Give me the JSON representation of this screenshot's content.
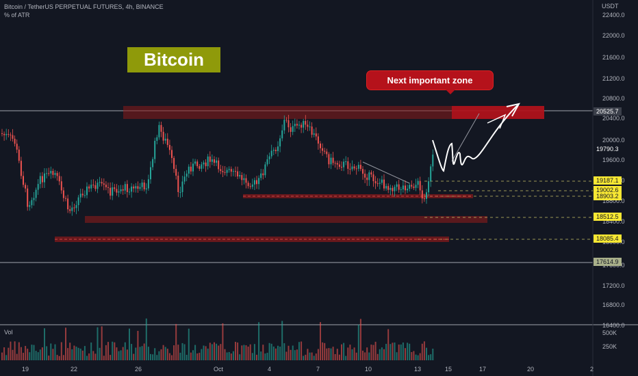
{
  "chart_title": "Bitcoin / TetherUS PERPETUAL FUTURES, 4h, BINANCE",
  "indicator_label": "% of ATR",
  "volume_label": "Vol",
  "badge": "Bitcoin",
  "callout": "Next important zone",
  "currency": "USDT",
  "price_ticks": [
    "22400.0",
    "22000.0",
    "21600.0",
    "21200.0",
    "20800.0",
    "20400.0",
    "20000.0",
    "19600.0",
    "19200.0",
    "18800.0",
    "18400.0",
    "18000.0",
    "17600.0",
    "17200.0",
    "16800.0",
    "16400.0"
  ],
  "price_labels": [
    {
      "text": "20525.7",
      "bg": "#3b3f4a",
      "fg": "#ffffff"
    },
    {
      "text": "19790.3",
      "bg": "#131722",
      "fg": "#ffffff"
    },
    {
      "text": "19187.1",
      "bg": "#f7e733",
      "fg": "#131722"
    },
    {
      "text": "19002.6",
      "bg": "#f7e733",
      "fg": "#131722"
    },
    {
      "text": "18903.2",
      "bg": "#f7e733",
      "fg": "#131722"
    },
    {
      "text": "18512.5",
      "bg": "#f7e733",
      "fg": "#131722"
    },
    {
      "text": "18085.4",
      "bg": "#f7e733",
      "fg": "#131722"
    },
    {
      "text": "17614.9",
      "bg": "#a9b08a",
      "fg": "#131722"
    }
  ],
  "time_ticks": [
    "19",
    "22",
    "26",
    "Oct",
    "4",
    "7",
    "10",
    "13",
    "15",
    "17",
    "20",
    "2"
  ],
  "volume_ticks": [
    "500K",
    "250K"
  ],
  "colors": {
    "up": "#26a69a",
    "down": "#ef5350",
    "zone": "#8b1a1a",
    "background": "#131722"
  }
}
